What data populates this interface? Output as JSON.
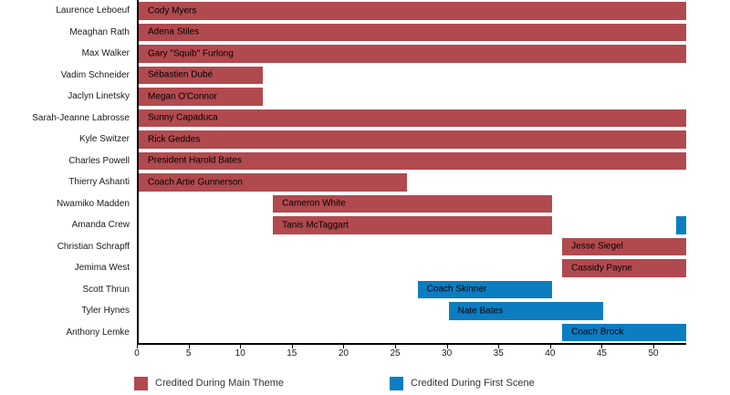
{
  "chart_data": {
    "type": "bar",
    "subtype": "gantt-horizontal",
    "title": "",
    "xlabel": "",
    "ylabel": "",
    "xlim": [
      0,
      53
    ],
    "x_ticks": [
      0,
      5,
      10,
      15,
      20,
      25,
      30,
      35,
      40,
      45,
      50
    ],
    "grid": false,
    "legend_position": "bottom",
    "colors": {
      "main_theme": "#b14a4f",
      "first_scene": "#0d7dc2",
      "bar_text": "#000000",
      "axis_text": "#1a1a1a"
    },
    "series_names": [
      "Credited During Main Theme",
      "Credited During First Scene"
    ],
    "rows": [
      {
        "actor": "Laurence Leboeuf",
        "character": "Cody Myers",
        "bars": [
          {
            "start": 0,
            "end": 53,
            "series": "main_theme",
            "label": "Cody Myers"
          }
        ]
      },
      {
        "actor": "Meaghan Rath",
        "character": "Adena Stiles",
        "bars": [
          {
            "start": 0,
            "end": 53,
            "series": "main_theme",
            "label": "Adena Stiles"
          }
        ]
      },
      {
        "actor": "Max Walker",
        "character": "Gary \"Squib\" Furlong",
        "bars": [
          {
            "start": 0,
            "end": 53,
            "series": "main_theme",
            "label": "Gary \"Squib\" Furlong"
          }
        ]
      },
      {
        "actor": "Vadim Schneider",
        "character": "Sébastien Dubé",
        "bars": [
          {
            "start": 0,
            "end": 12,
            "series": "main_theme",
            "label": "Sébastien Dubé"
          }
        ]
      },
      {
        "actor": "Jaclyn Linetsky",
        "character": "Megan O'Connor",
        "bars": [
          {
            "start": 0,
            "end": 12,
            "series": "main_theme",
            "label": "Megan O'Connor"
          }
        ]
      },
      {
        "actor": "Sarah-Jeanne Labrosse",
        "character": "Sunny Capaduca",
        "bars": [
          {
            "start": 0,
            "end": 53,
            "series": "main_theme",
            "label": "Sunny Capaduca"
          }
        ]
      },
      {
        "actor": "Kyle Switzer",
        "character": "Rick Geddes",
        "bars": [
          {
            "start": 0,
            "end": 53,
            "series": "main_theme",
            "label": "Rick Geddes"
          }
        ]
      },
      {
        "actor": "Charles Powell",
        "character": "President Harold Bates",
        "bars": [
          {
            "start": 0,
            "end": 53,
            "series": "main_theme",
            "label": "President Harold Bates"
          }
        ]
      },
      {
        "actor": "Thierry Ashanti",
        "character": "Coach Artie Gunnerson",
        "bars": [
          {
            "start": 0,
            "end": 26,
            "series": "main_theme",
            "label": "Coach Artie Gunnerson"
          }
        ]
      },
      {
        "actor": "Nwamiko Madden",
        "character": "Cameron White",
        "bars": [
          {
            "start": 13,
            "end": 40,
            "series": "main_theme",
            "label": "Cameron White"
          }
        ]
      },
      {
        "actor": "Amanda Crew",
        "character": "Tanis McTaggart",
        "bars": [
          {
            "start": 13,
            "end": 40,
            "series": "main_theme",
            "label": "Tanis McTaggart"
          },
          {
            "start": 52,
            "end": 53,
            "series": "first_scene",
            "label": ""
          }
        ]
      },
      {
        "actor": "Christian Schrapff",
        "character": "Jesse Siegel",
        "bars": [
          {
            "start": 41,
            "end": 53,
            "series": "main_theme",
            "label": "Jesse Siegel"
          }
        ]
      },
      {
        "actor": "Jemima West",
        "character": "Cassidy Payne",
        "bars": [
          {
            "start": 41,
            "end": 53,
            "series": "main_theme",
            "label": "Cassidy Payne"
          }
        ]
      },
      {
        "actor": "Scott Thrun",
        "character": "Coach Skinner",
        "bars": [
          {
            "start": 27,
            "end": 40,
            "series": "first_scene",
            "label": "Coach Skinner"
          }
        ]
      },
      {
        "actor": "Tyler Hynes",
        "character": "Nate Bates",
        "bars": [
          {
            "start": 30,
            "end": 45,
            "series": "first_scene",
            "label": "Nate Bates"
          }
        ]
      },
      {
        "actor": "Anthony Lemke",
        "character": "Coach Brock",
        "bars": [
          {
            "start": 41,
            "end": 53,
            "series": "first_scene",
            "label": "Coach Brock"
          }
        ]
      }
    ]
  },
  "legend": {
    "items": [
      {
        "label": "Credited During Main Theme",
        "series": "main_theme"
      },
      {
        "label": "Credited During First Scene",
        "series": "first_scene"
      }
    ]
  }
}
